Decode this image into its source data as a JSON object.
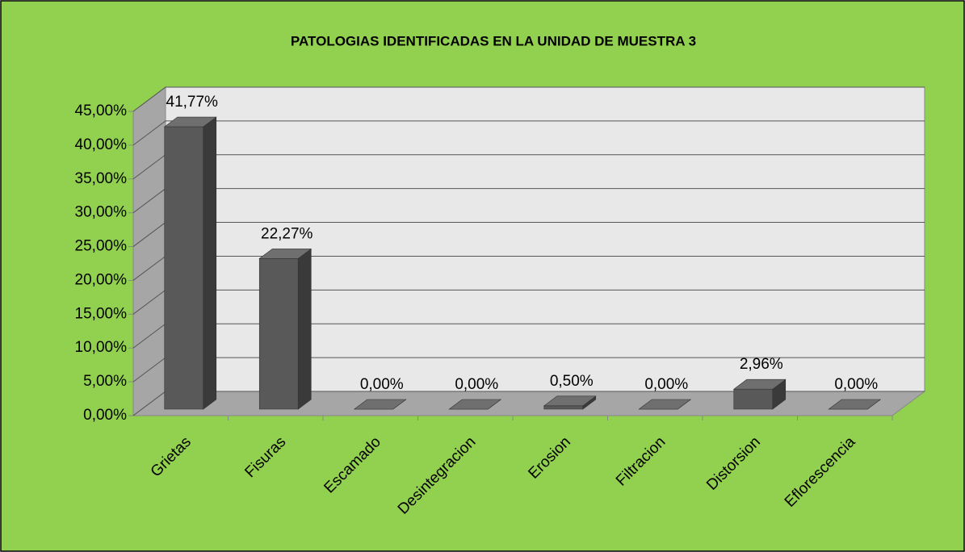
{
  "chart_data": {
    "type": "bar3d",
    "title": "PATOLOGIAS IDENTIFICADAS EN LA UNIDAD DE MUESTRA  3",
    "categories": [
      "Grietas",
      "Fisuras",
      "Escamado",
      "Desintegracion",
      "Erosion",
      "Filtracion",
      "Distorsion",
      "Eflorescencia"
    ],
    "values": [
      41.77,
      22.27,
      0,
      0,
      0.5,
      0,
      2.96,
      0
    ],
    "value_labels": [
      "41,77%",
      "22,27%",
      "0,00%",
      "0,00%",
      "0,50%",
      "0,00%",
      "2,96%",
      "0,00%"
    ],
    "color": "#595959",
    "ylim": [
      0,
      45
    ],
    "yticks": [
      {
        "value": 0,
        "label": "0,00%"
      },
      {
        "value": 5,
        "label": "5,00%"
      },
      {
        "value": 10,
        "label": "10,00%"
      },
      {
        "value": 15,
        "label": "15,00%"
      },
      {
        "value": 20,
        "label": "20,00%"
      },
      {
        "value": 25,
        "label": "25,00%"
      },
      {
        "value": 30,
        "label": "30,00%"
      },
      {
        "value": 35,
        "label": "35,00%"
      },
      {
        "value": 40,
        "label": "40,00%"
      },
      {
        "value": 45,
        "label": "45,00%"
      }
    ],
    "grid": true
  }
}
